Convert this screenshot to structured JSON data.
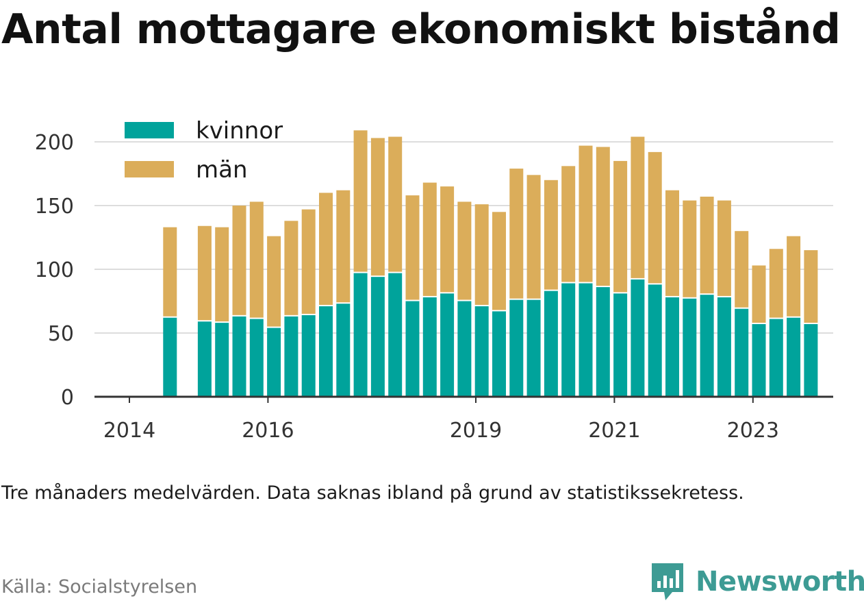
{
  "title": "Antal mottagare ekonomiskt bistånd",
  "note": "Tre månaders medelvärden. Data saknas ibland på grund av statistikssekretess.",
  "source": "Källa: Socialstyrelsen",
  "brand": {
    "name": "Newsworthy",
    "icon": "newsworthy-logo-icon",
    "color": "#3d9b94"
  },
  "chart_data": {
    "type": "bar",
    "stacked": true,
    "title": "Antal mottagare ekonomiskt bistånd",
    "xlabel": "",
    "ylabel": "",
    "ylim": [
      0,
      210
    ],
    "yticks": [
      0,
      50,
      100,
      150,
      200
    ],
    "grid": true,
    "legend_position": "top-left",
    "xticks": [
      {
        "label": "2014",
        "index": 0
      },
      {
        "label": "2016",
        "index": 8
      },
      {
        "label": "2019",
        "index": 20
      },
      {
        "label": "2021",
        "index": 28
      },
      {
        "label": "2023",
        "index": 36
      }
    ],
    "series": [
      {
        "name": "kvinnor",
        "color": "#00a39b",
        "values": [
          null,
          62,
          null,
          59,
          58,
          63,
          61,
          54,
          63,
          64,
          71,
          73,
          97,
          94,
          97,
          75,
          78,
          81,
          75,
          71,
          67,
          76,
          76,
          83,
          89,
          89,
          86,
          81,
          92,
          88,
          78,
          77,
          80,
          78,
          69,
          57,
          61,
          62,
          57
        ]
      },
      {
        "name": "män",
        "color": "#dbad5a",
        "values": [
          null,
          71,
          null,
          75,
          75,
          87,
          92,
          72,
          75,
          83,
          89,
          89,
          112,
          109,
          107,
          83,
          90,
          84,
          78,
          80,
          78,
          103,
          98,
          87,
          92,
          108,
          110,
          104,
          112,
          104,
          84,
          77,
          77,
          76,
          61,
          46,
          55,
          64,
          58
        ]
      }
    ]
  }
}
